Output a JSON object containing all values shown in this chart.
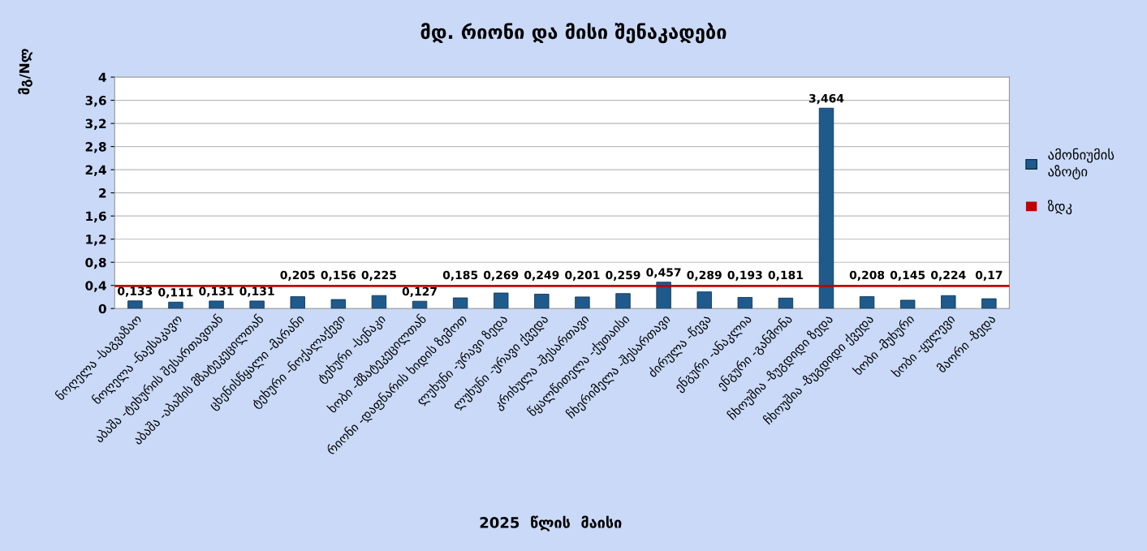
{
  "chart_data": {
    "type": "bar",
    "title": "მდ. რიონი და მისი შენაკადები",
    "xlabel": "2025  წლის  მაისი",
    "ylabel": "მგ/Nლ",
    "categories": [
      "ნოღელა -საგვაზაო",
      "ნოღელა -ნაესაკავო",
      "აბაშა -ტეხურის შესართავთან",
      "აბაშა -აბაშის მზატეკეცილთან",
      "ცხენისწყალი -მარანი",
      "ტეხური -ნოქალაქევი",
      "ტეხური -სენაკი",
      "ხობი -მზატეკეცილთან",
      "რიონი -დაფნარის ხიდის ზემოთ",
      "ლუხუნი -ურავი ზედა",
      "ლუხუნი -ურავი ქვედა",
      "კრიხულა -შესართავი",
      "წყალწითელა -ქუთაისი",
      "ჩხერიმელა -შესართავი",
      "ძირულა -წევა",
      "ენგური -ანაკლია",
      "ენგური -განმონა",
      "ჩხოუშია -ზუგდიდი ზედა",
      "ჩხოუშია -ზუგდიდი ქვედა",
      "ხობი -მუხური",
      "ხობი -ყულევი",
      "მაორი -ზედა"
    ],
    "series": [
      {
        "name": "ამონიუმის აზოტი",
        "color": "#1f5a8c",
        "values": [
          0.133,
          0.111,
          0.131,
          0.131,
          0.205,
          0.156,
          0.225,
          0.127,
          0.185,
          0.269,
          0.249,
          0.201,
          0.259,
          0.457,
          0.289,
          0.193,
          0.181,
          3.464,
          0.208,
          0.145,
          0.224,
          0.17
        ],
        "value_labels": [
          "0,133",
          "0,111",
          "0,131",
          "0,131",
          "0,205",
          "0,156",
          "0,225",
          "0,127",
          "0,185",
          "0,269",
          "0,249",
          "0,201",
          "0,259",
          "0,457",
          "0,289",
          "0,193",
          "0,181",
          "3,464",
          "0,208",
          "0,145",
          "0,224",
          "0,17"
        ]
      }
    ],
    "ref_lines": [
      {
        "axis": "y",
        "value": 0.39,
        "label": "ზდკ",
        "color": "#c00000"
      }
    ],
    "ylim": [
      0,
      4
    ],
    "yticks": [
      0,
      {
        "value": 0.4,
        "label": "0,4"
      },
      {
        "value": 0.8,
        "label": "0,8"
      },
      {
        "value": 1.2,
        "label": "1,2"
      },
      {
        "value": 1.6,
        "label": "1,6"
      },
      2,
      {
        "value": 2.4,
        "label": "2,4"
      },
      {
        "value": 2.8,
        "label": "2,8"
      },
      {
        "value": 3.2,
        "label": "3,2"
      },
      {
        "value": 3.6,
        "label": "3,6"
      },
      4
    ],
    "grid": "y",
    "legend": "right"
  }
}
